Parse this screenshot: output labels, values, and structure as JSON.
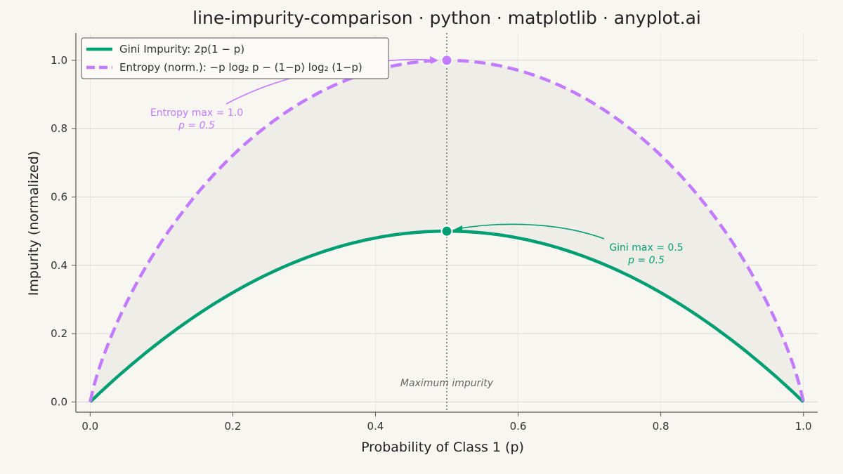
{
  "title": "line-impurity-comparison · python · matplotlib · anyplot.ai",
  "colors": {
    "background": "#f8f6f1",
    "gini": "#009e73",
    "entropy": "#c27aff",
    "fill": "#efede7",
    "grid": "#d8d6d1",
    "axis": "#555555",
    "vline": "#666666",
    "note": "#666666"
  },
  "chart_data": {
    "type": "line",
    "title": "line-impurity-comparison · python · matplotlib · anyplot.ai",
    "xlabel": "Probability of Class 1 (p)",
    "ylabel": "Impurity (normalized)",
    "xlim": [
      -0.02,
      1.02
    ],
    "ylim": [
      -0.03,
      1.08
    ],
    "xticks": [
      "0.0",
      "0.2",
      "0.4",
      "0.6",
      "0.8",
      "1.0"
    ],
    "yticks": [
      "0.0",
      "0.2",
      "0.4",
      "0.6",
      "0.8",
      "1.0"
    ],
    "grid": true,
    "legend_position": "top-left",
    "x": [
      0.0,
      0.05,
      0.1,
      0.15,
      0.2,
      0.25,
      0.3,
      0.35,
      0.4,
      0.45,
      0.5,
      0.55,
      0.6,
      0.65,
      0.7,
      0.75,
      0.8,
      0.85,
      0.9,
      0.95,
      1.0
    ],
    "series": [
      {
        "name": "Gini Impurity: 2p(1 − p)",
        "style": "solid",
        "values": [
          0.0,
          0.095,
          0.18,
          0.255,
          0.32,
          0.375,
          0.42,
          0.455,
          0.48,
          0.495,
          0.5,
          0.495,
          0.48,
          0.455,
          0.42,
          0.375,
          0.32,
          0.255,
          0.18,
          0.095,
          0.0
        ]
      },
      {
        "name": "Entropy (norm.): −p log₂ p − (1−p) log₂ (1−p)",
        "style": "dashed",
        "values": [
          0.0,
          0.286,
          0.469,
          0.61,
          0.722,
          0.811,
          0.881,
          0.934,
          0.971,
          0.993,
          1.0,
          0.993,
          0.971,
          0.934,
          0.881,
          0.811,
          0.722,
          0.61,
          0.469,
          0.286,
          0.0
        ]
      }
    ],
    "shaded_region": "between series",
    "vline": {
      "x": 0.5,
      "label": "Maximum impurity",
      "style": "dotted"
    },
    "markers": [
      {
        "x": 0.5,
        "y": 1.0,
        "series": "entropy"
      },
      {
        "x": 0.5,
        "y": 0.5,
        "series": "gini"
      }
    ],
    "annotations": [
      {
        "line1": "Entropy max = 1.0",
        "line2": "p = 0.5",
        "x": 0.5,
        "y": 1.0
      },
      {
        "line1": "Gini max = 0.5",
        "line2": "p = 0.5",
        "x": 0.5,
        "y": 0.5
      }
    ]
  }
}
